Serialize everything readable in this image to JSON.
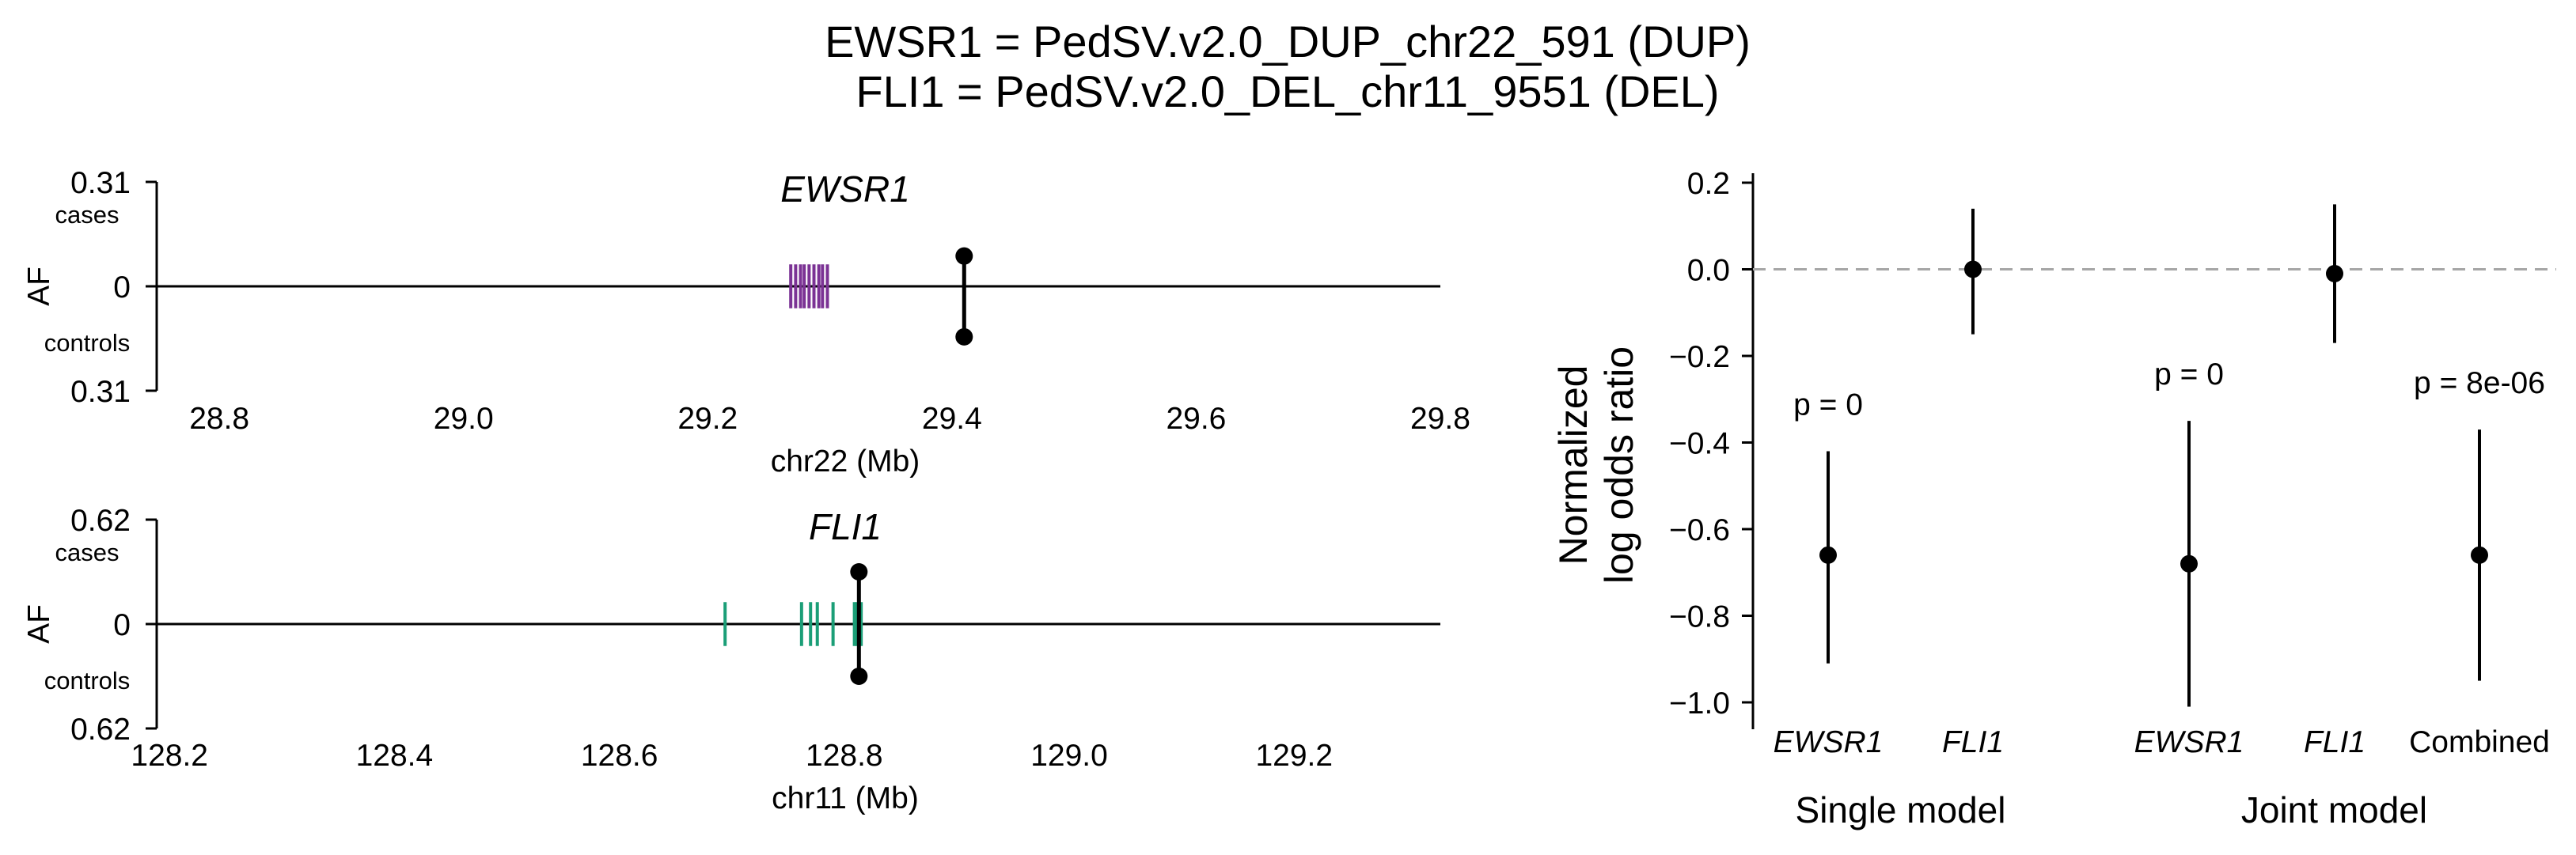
{
  "title_lines": [
    "EWSR1 = PedSV.v2.0_DUP_chr22_591 (DUP)",
    "FLI1 = PedSV.v2.0_DEL_chr11_9551 (DEL)"
  ],
  "colors": {
    "ewsr1_exon": "#7b3294",
    "fli1_exon": "#1b9e77",
    "point": "#000000",
    "refline": "#a6a6a6"
  },
  "chart_data": [
    {
      "type": "locus",
      "gene": "EWSR1",
      "xlabel": "chr22 (Mb)",
      "xlim": [
        28.75,
        29.8
      ],
      "xticks": [
        "28.8",
        "29.0",
        "29.2",
        "29.4",
        "29.6",
        "29.8"
      ],
      "xtick_values": [
        28.8,
        29.0,
        29.2,
        29.4,
        29.6,
        29.8
      ],
      "ylabel": "AF",
      "ytick_labels": [
        "0.31",
        "0",
        "0.31"
      ],
      "ymax": 0.31,
      "top_label": "cases",
      "bottom_label": "controls",
      "exons_mb": [
        29.268,
        29.272,
        29.276,
        29.279,
        29.283,
        29.287,
        29.291,
        29.294,
        29.298
      ],
      "exon_color": "#7b3294",
      "variant": {
        "pos_mb": 29.41,
        "cases_af": 0.09,
        "controls_af": 0.15
      }
    },
    {
      "type": "locus",
      "gene": "FLI1",
      "xlabel": "chr11 (Mb)",
      "xlim": [
        128.19,
        129.33
      ],
      "xticks": [
        "128.2",
        "128.4",
        "128.6",
        "128.8",
        "129.0",
        "129.2"
      ],
      "xtick_values": [
        128.2,
        128.4,
        128.6,
        128.8,
        129.0,
        129.2
      ],
      "ylabel": "AF",
      "ytick_labels": [
        "0.62",
        "0",
        "0.62"
      ],
      "ymax": 0.62,
      "top_label": "cases",
      "bottom_label": "controls",
      "exons_mb": [
        128.694,
        128.762,
        128.77,
        128.776,
        128.79,
        128.809,
        128.811,
        128.813,
        128.815
      ],
      "exon_color": "#1b9e77",
      "variant": {
        "pos_mb": 128.813,
        "cases_af": 0.31,
        "controls_af": 0.31
      }
    },
    {
      "type": "pointrange",
      "ylabel_lines": [
        "Normalized",
        "log odds ratio"
      ],
      "ylim": [
        -1.05,
        0.22
      ],
      "yticks": [
        "0.2",
        "0.0",
        "−0.2",
        "−0.4",
        "−0.6",
        "−0.8",
        "−1.0"
      ],
      "ytick_values": [
        0.2,
        0.0,
        -0.2,
        -0.4,
        -0.6,
        -0.8,
        -1.0
      ],
      "refline_y": 0.0,
      "categories": [
        "EWSR1",
        "FLI1",
        "EWSR1",
        "FLI1",
        "Combined"
      ],
      "category_italic": [
        true,
        true,
        true,
        true,
        false
      ],
      "groups": [
        {
          "label": "Single model",
          "members": [
            0,
            1
          ]
        },
        {
          "label": "Joint model",
          "members": [
            2,
            3,
            4
          ]
        }
      ],
      "points": [
        {
          "estimate": -0.66,
          "lower": -0.91,
          "upper": -0.42,
          "pvalue": "p = 0"
        },
        {
          "estimate": 0.0,
          "lower": -0.15,
          "upper": 0.14,
          "pvalue": ""
        },
        {
          "estimate": -0.68,
          "lower": -1.01,
          "upper": -0.35,
          "pvalue": "p = 0"
        },
        {
          "estimate": -0.01,
          "lower": -0.17,
          "upper": 0.15,
          "pvalue": ""
        },
        {
          "estimate": -0.66,
          "lower": -0.95,
          "upper": -0.37,
          "pvalue": "p = 8e-06"
        }
      ]
    }
  ]
}
